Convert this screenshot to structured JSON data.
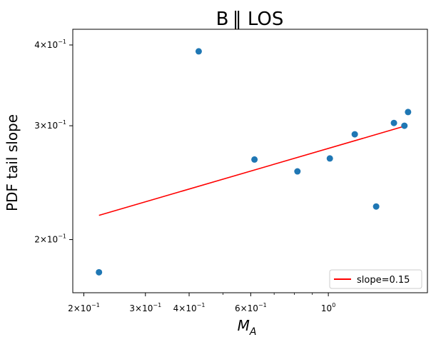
{
  "chart_data": {
    "type": "scatter",
    "title": "B ∥ LOS",
    "xlabel_base": "M",
    "xlabel_sub": "A",
    "ylabel": "PDF tail slope",
    "xscale": "log",
    "yscale": "log",
    "xlim": [
      0.186,
      1.92
    ],
    "ylim": [
      0.1655,
      0.423
    ],
    "xticks": [
      {
        "value": 0.2,
        "base": "2×10",
        "exp": "−1"
      },
      {
        "value": 0.3,
        "base": "3×10",
        "exp": "−1"
      },
      {
        "value": 0.4,
        "base": "4×10",
        "exp": "−1"
      },
      {
        "value": 0.6,
        "base": "6×10",
        "exp": "−1"
      },
      {
        "value": 1.0,
        "base": "10",
        "exp": "0"
      }
    ],
    "yticks": [
      {
        "value": 0.2,
        "base": "2×10",
        "exp": "−1"
      },
      {
        "value": 0.3,
        "base": "3×10",
        "exp": "−1"
      },
      {
        "value": 0.4,
        "base": "4×10",
        "exp": "−1"
      }
    ],
    "points": [
      {
        "x": 0.221,
        "y": 0.178
      },
      {
        "x": 0.426,
        "y": 0.391
      },
      {
        "x": 0.615,
        "y": 0.266
      },
      {
        "x": 0.816,
        "y": 0.255
      },
      {
        "x": 1.01,
        "y": 0.267
      },
      {
        "x": 1.19,
        "y": 0.291
      },
      {
        "x": 1.37,
        "y": 0.225
      },
      {
        "x": 1.54,
        "y": 0.303
      },
      {
        "x": 1.65,
        "y": 0.3
      },
      {
        "x": 1.69,
        "y": 0.315
      }
    ],
    "fit_line": {
      "x": [
        0.221,
        1.65
      ],
      "y": [
        0.218,
        0.2995
      ]
    },
    "legend": {
      "label": "slope=0.15",
      "placement": "lower right"
    },
    "grid": false,
    "colors": {
      "points": "#1f77b4",
      "fit": "#ff0000"
    }
  }
}
